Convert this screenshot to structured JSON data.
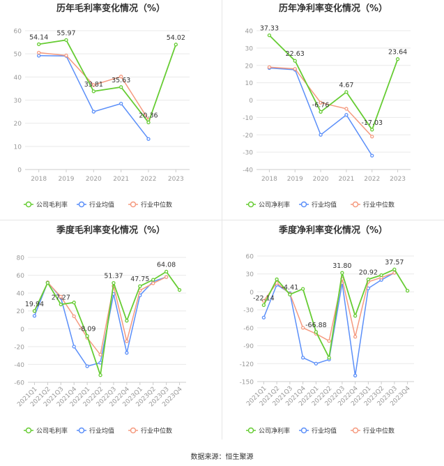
{
  "footer": {
    "source": "数据来源：恒生聚源"
  },
  "colors": {
    "company": "#66cc33",
    "industry_avg": "#5b8ff9",
    "industry_median": "#f59a7f",
    "grid": "#e9e9e9",
    "tick": "#999999",
    "title": "#333333"
  },
  "chart_data": [
    {
      "id": "annual-gross",
      "type": "line",
      "title": "历年毛利率变化情况（%）",
      "categories": [
        "2018",
        "2019",
        "2020",
        "2021",
        "2022",
        "2023"
      ],
      "ylim": [
        0,
        60
      ],
      "yticks": [
        0,
        10,
        20,
        30,
        40,
        50,
        60
      ],
      "legend": [
        "公司毛利率",
        "行业均值",
        "行业中位数"
      ],
      "series": [
        {
          "name": "公司毛利率",
          "role": "company",
          "values": [
            54.14,
            55.97,
            33.81,
            35.63,
            20.36,
            54.02
          ],
          "labels": [
            "54.14",
            "55.97",
            "33.81",
            "35.63",
            "20.36",
            "54.02"
          ]
        },
        {
          "name": "行业均值",
          "role": "industry_avg",
          "values": [
            49.2,
            49.1,
            25.0,
            28.5,
            13.2,
            null
          ]
        },
        {
          "name": "行业中位数",
          "role": "industry_median",
          "values": [
            50.5,
            49.3,
            36.5,
            40.2,
            21.5,
            null
          ]
        }
      ]
    },
    {
      "id": "annual-net",
      "type": "line",
      "title": "历年净利率变化情况（%）",
      "categories": [
        "2018",
        "2019",
        "2020",
        "2021",
        "2022",
        "2023"
      ],
      "ylim": [
        -40,
        40
      ],
      "yticks": [
        -40,
        -30,
        -20,
        -10,
        0,
        10,
        20,
        30,
        40
      ],
      "legend": [
        "公司净利率",
        "行业均值",
        "行业中位数"
      ],
      "series": [
        {
          "name": "公司净利率",
          "role": "company",
          "values": [
            37.33,
            22.63,
            -6.76,
            4.67,
            -17.03,
            23.64
          ],
          "labels": [
            "37.33",
            "22.63",
            "-6.76",
            "4.67",
            "-17.03",
            "23.64"
          ]
        },
        {
          "name": "行业均值",
          "role": "industry_avg",
          "values": [
            18.5,
            17.5,
            -20.0,
            -8.5,
            -32.0,
            null
          ]
        },
        {
          "name": "行业中位数",
          "role": "industry_median",
          "values": [
            19.0,
            18.0,
            -1.5,
            -5.0,
            -21.0,
            null
          ]
        }
      ]
    },
    {
      "id": "quarterly-gross",
      "type": "line",
      "title": "季度毛利率变化情况（%）",
      "categories": [
        "2021Q1",
        "2021Q2",
        "2021Q3",
        "2021Q4",
        "2022Q1",
        "2022Q2",
        "2022Q3",
        "2022Q4",
        "2023Q1",
        "2023Q2",
        "2023Q3",
        "2023Q4"
      ],
      "ylim": [
        -60,
        80
      ],
      "yticks": [
        -60,
        -40,
        -20,
        0,
        20,
        40,
        60,
        80
      ],
      "legend": [
        "公司毛利率",
        "行业均值",
        "行业中位数"
      ],
      "series": [
        {
          "name": "公司毛利率",
          "role": "company",
          "values": [
            19.94,
            51.5,
            27.27,
            29.5,
            -8.09,
            -52.0,
            51.37,
            9.0,
            47.75,
            55.0,
            64.08,
            43.5
          ],
          "labels": [
            "19.94",
            "",
            "27.27",
            "",
            "-8.09",
            "",
            "51.37",
            "",
            "47.75",
            "",
            "64.08",
            ""
          ]
        },
        {
          "name": "行业均值",
          "role": "industry_avg",
          "values": [
            14.5,
            52.0,
            35.0,
            -20.0,
            -42.0,
            -38.0,
            39.0,
            -27.0,
            37.5,
            53.0,
            58.0,
            null
          ]
        },
        {
          "name": "行业中位数",
          "role": "industry_median",
          "values": [
            20.0,
            52.0,
            36.0,
            14.0,
            -10.0,
            -29.0,
            48.0,
            -14.0,
            43.0,
            51.0,
            58.0,
            null
          ]
        }
      ]
    },
    {
      "id": "quarterly-net",
      "type": "line",
      "title": "季度净利率变化情况（%）",
      "categories": [
        "2021Q1",
        "2021Q2",
        "2021Q3",
        "2021Q4",
        "2022Q1",
        "2022Q2",
        "2022Q3",
        "2022Q4",
        "2023Q1",
        "2023Q2",
        "2023Q3",
        "2023Q4"
      ],
      "ylim": [
        -150,
        60
      ],
      "yticks": [
        -150,
        -120,
        -90,
        -60,
        -30,
        0,
        30,
        60
      ],
      "legend": [
        "公司净利率",
        "行业均值",
        "行业中位数"
      ],
      "series": [
        {
          "name": "公司净利率",
          "role": "company",
          "values": [
            -22.14,
            21.0,
            -4.41,
            5.0,
            -66.88,
            -110.0,
            31.8,
            -40.0,
            20.92,
            28.0,
            37.57,
            2.0
          ],
          "labels": [
            "-22.14",
            "",
            "-4.41",
            "",
            "-66.88",
            "",
            "31.80",
            "",
            "20.92",
            "",
            "37.57",
            ""
          ]
        },
        {
          "name": "行业均值",
          "role": "industry_avg",
          "values": [
            -43.0,
            12.0,
            -2.0,
            -110.0,
            -120.0,
            -113.0,
            15.0,
            -140.0,
            6.0,
            20.0,
            32.0,
            null
          ]
        },
        {
          "name": "行业中位数",
          "role": "industry_median",
          "values": [
            -15.0,
            15.0,
            -3.0,
            -60.0,
            -70.0,
            -82.0,
            22.0,
            -75.0,
            17.0,
            24.0,
            32.0,
            null
          ]
        }
      ]
    }
  ]
}
